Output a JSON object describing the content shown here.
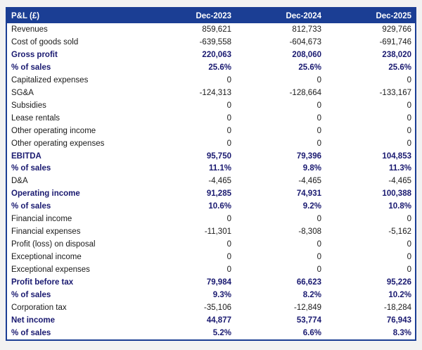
{
  "colors": {
    "header_bg": "#1b3e94",
    "header_text": "#ffffff",
    "emphasis_text": "#191970",
    "body_text": "#1a1a1a",
    "table_border": "#1b3e94",
    "page_bg": "#f2f2f2",
    "row_bg": "#ffffff"
  },
  "chart_data": {
    "type": "table",
    "title": "P&L (£)",
    "columns": [
      "P&L (£)",
      "Dec-2023",
      "Dec-2024",
      "Dec-2025"
    ],
    "rows": [
      {
        "label": "Revenues",
        "values": [
          "859,621",
          "812,733",
          "929,766"
        ],
        "emphasis": false
      },
      {
        "label": "Cost of goods sold",
        "values": [
          "-639,558",
          "-604,673",
          "-691,746"
        ],
        "emphasis": false
      },
      {
        "label": "Gross profit",
        "values": [
          "220,063",
          "208,060",
          "238,020"
        ],
        "emphasis": true
      },
      {
        "label": "% of sales",
        "values": [
          "25.6%",
          "25.6%",
          "25.6%"
        ],
        "emphasis": true
      },
      {
        "label": "Capitalized expenses",
        "values": [
          "0",
          "0",
          "0"
        ],
        "emphasis": false
      },
      {
        "label": "SG&A",
        "values": [
          "-124,313",
          "-128,664",
          "-133,167"
        ],
        "emphasis": false
      },
      {
        "label": "Subsidies",
        "values": [
          "0",
          "0",
          "0"
        ],
        "emphasis": false
      },
      {
        "label": "Lease rentals",
        "values": [
          "0",
          "0",
          "0"
        ],
        "emphasis": false
      },
      {
        "label": "Other operating income",
        "values": [
          "0",
          "0",
          "0"
        ],
        "emphasis": false
      },
      {
        "label": "Other operating expenses",
        "values": [
          "0",
          "0",
          "0"
        ],
        "emphasis": false
      },
      {
        "label": "EBITDA",
        "values": [
          "95,750",
          "79,396",
          "104,853"
        ],
        "emphasis": true
      },
      {
        "label": "% of sales",
        "values": [
          "11.1%",
          "9.8%",
          "11.3%"
        ],
        "emphasis": true
      },
      {
        "label": "D&A",
        "values": [
          "-4,465",
          "-4,465",
          "-4,465"
        ],
        "emphasis": false
      },
      {
        "label": "Operating income",
        "values": [
          "91,285",
          "74,931",
          "100,388"
        ],
        "emphasis": true
      },
      {
        "label": "% of sales",
        "values": [
          "10.6%",
          "9.2%",
          "10.8%"
        ],
        "emphasis": true
      },
      {
        "label": "Financial income",
        "values": [
          "0",
          "0",
          "0"
        ],
        "emphasis": false
      },
      {
        "label": "Financial expenses",
        "values": [
          "-11,301",
          "-8,308",
          "-5,162"
        ],
        "emphasis": false
      },
      {
        "label": "Profit (loss) on disposal",
        "values": [
          "0",
          "0",
          "0"
        ],
        "emphasis": false
      },
      {
        "label": "Exceptional income",
        "values": [
          "0",
          "0",
          "0"
        ],
        "emphasis": false
      },
      {
        "label": "Exceptional expenses",
        "values": [
          "0",
          "0",
          "0"
        ],
        "emphasis": false
      },
      {
        "label": "Profit before tax",
        "values": [
          "79,984",
          "66,623",
          "95,226"
        ],
        "emphasis": true
      },
      {
        "label": "% of sales",
        "values": [
          "9.3%",
          "8.2%",
          "10.2%"
        ],
        "emphasis": true
      },
      {
        "label": "Corporation tax",
        "values": [
          "-35,106",
          "-12,849",
          "-18,284"
        ],
        "emphasis": false
      },
      {
        "label": "Net income",
        "values": [
          "44,877",
          "53,774",
          "76,943"
        ],
        "emphasis": true
      },
      {
        "label": "% of sales",
        "values": [
          "5.2%",
          "6.6%",
          "8.3%"
        ],
        "emphasis": true
      }
    ]
  }
}
